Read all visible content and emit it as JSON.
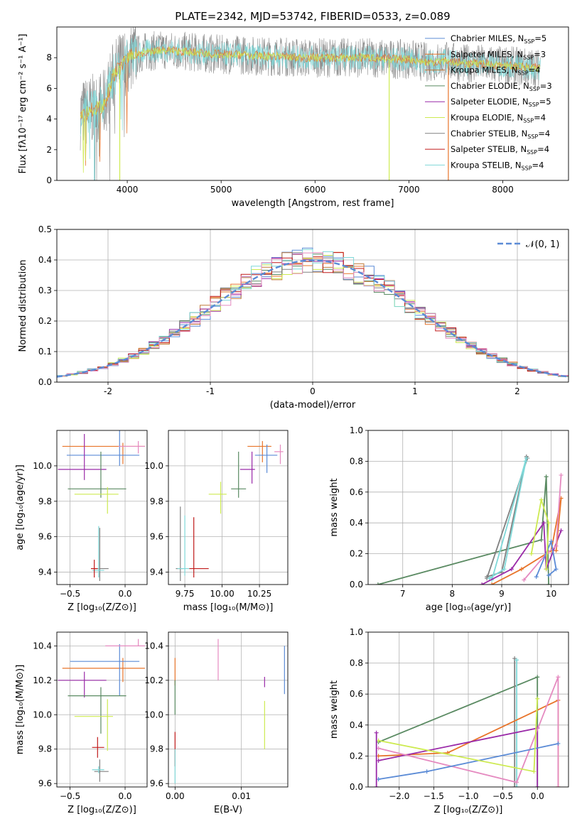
{
  "title": "PLATE=2342, MJD=53742, FIBERID=0533, z=0.089",
  "colors": {
    "chabrier_miles": "#5b8bd6",
    "salpeter_miles": "#e8742a",
    "kroupa_miles": "#c07a3a",
    "chabrier_elodie": "#5a8a62",
    "salpeter_elodie": "#9a2aa8",
    "kroupa_elodie": "#cdea50",
    "chabrier_stelib": "#808080",
    "salpeter_stelib": "#c01a1a",
    "kroupa_stelib": "#7fd8d8",
    "normal": "#5b8bd6",
    "grid": "#b0b0b0"
  },
  "chart_data": [
    {
      "id": "spectrum",
      "type": "line",
      "xlabel": "wavelength [Angstrom, rest frame]",
      "ylabel": "Flux [fλ10⁻¹⁷ erg cm⁻² s⁻¹ A⁻¹]",
      "xlim": [
        3250,
        8700
      ],
      "ylim": [
        0,
        10
      ],
      "xticks": [
        4000,
        5000,
        6000,
        7000,
        8000
      ],
      "yticks": [
        0,
        2,
        4,
        6,
        8
      ],
      "legend_position": "right",
      "legend": [
        {
          "label": "Chabrier MILES, N",
          "sub": "SSP",
          "suffix": "=5",
          "color": "chabrier_miles"
        },
        {
          "label": "Salpeter MILES, N",
          "sub": "SSP",
          "suffix": "=3",
          "color": "salpeter_miles"
        },
        {
          "label": "Kroupa MILES, N",
          "sub": "SSP",
          "suffix": "=4",
          "color": "kroupa_miles"
        },
        {
          "label": "Chabrier ELODIE, N",
          "sub": "SSP",
          "suffix": "=3",
          "color": "chabrier_elodie"
        },
        {
          "label": "Salpeter ELODIE, N",
          "sub": "SSP",
          "suffix": "=5",
          "color": "salpeter_elodie"
        },
        {
          "label": "Kroupa ELODIE, N",
          "sub": "SSP",
          "suffix": "=4",
          "color": "kroupa_elodie"
        },
        {
          "label": "Chabrier STELIB, N",
          "sub": "SSP",
          "suffix": "=4",
          "color": "chabrier_stelib"
        },
        {
          "label": "Salpeter STELIB, N",
          "sub": "SSP",
          "suffix": "=4",
          "color": "salpeter_stelib"
        },
        {
          "label": "Kroupa STELIB, N",
          "sub": "SSP",
          "suffix": "=4",
          "color": "kroupa_stelib"
        }
      ],
      "continuum": [
        [
          3500,
          4.3
        ],
        [
          3620,
          4.6
        ],
        [
          3750,
          4.9
        ],
        [
          3850,
          6.8
        ],
        [
          3950,
          7.6
        ],
        [
          4050,
          8.1
        ],
        [
          4200,
          8.4
        ],
        [
          4400,
          8.5
        ],
        [
          4600,
          8.4
        ],
        [
          4800,
          8.3
        ],
        [
          5000,
          8.2
        ],
        [
          5200,
          8.2
        ],
        [
          5400,
          8.1
        ],
        [
          5600,
          8.1
        ],
        [
          5800,
          8.0
        ],
        [
          6000,
          8.0
        ],
        [
          6200,
          8.0
        ],
        [
          6400,
          8.0
        ],
        [
          6600,
          8.0
        ],
        [
          6800,
          7.9
        ],
        [
          7000,
          7.9
        ],
        [
          7200,
          7.7
        ],
        [
          7400,
          7.8
        ],
        [
          7600,
          7.6
        ],
        [
          7800,
          7.6
        ],
        [
          8000,
          7.5
        ],
        [
          8200,
          7.4
        ],
        [
          8400,
          7.3
        ]
      ],
      "spikes": [
        {
          "x": 3920,
          "color": "kroupa_elodie"
        },
        {
          "x": 6790,
          "color": "kroupa_elodie"
        },
        {
          "x": 7420,
          "color": "salpeter_miles"
        },
        {
          "x": 3650,
          "color": "kroupa_stelib"
        }
      ]
    },
    {
      "id": "residuals",
      "type": "histogram",
      "xlabel": "(data-model)/error",
      "ylabel": "Normed distribution",
      "xlim": [
        -2.5,
        2.5
      ],
      "ylim": [
        0,
        0.5
      ],
      "xticks": [
        -2,
        -1,
        0,
        1,
        2
      ],
      "yticks": [
        0.0,
        0.1,
        0.2,
        0.3,
        0.4,
        0.5
      ],
      "grid": true,
      "legend": "𝒩(0, 1)",
      "legend_position": "top-right",
      "bin_width": 0.1,
      "series_colors": [
        "chabrier_miles",
        "salpeter_miles",
        "kroupa_miles",
        "chabrier_elodie",
        "salpeter_elodie",
        "kroupa_elodie",
        "chabrier_stelib",
        "salpeter_stelib",
        "kroupa_stelib"
      ],
      "color_extra": "#e58ac0"
    },
    {
      "id": "age_vs_Z",
      "type": "scatter",
      "xlabel": "Z [log₁₀(Z/Z⊙)]",
      "ylabel": "age  [log₁₀(age/yr)]",
      "xlim": [
        -0.62,
        0.2
      ],
      "ylim": [
        9.33,
        10.2
      ],
      "xticks": [
        -0.5,
        0.0
      ],
      "xticklabels": [
        "−0.5",
        "0.0"
      ],
      "yticks": [
        9.4,
        9.6,
        9.8,
        10.0
      ],
      "yticklabels": [
        "9.4",
        "9.6",
        "9.8",
        "10.0"
      ],
      "points": [
        {
          "x": -0.02,
          "y": 10.11,
          "xerr": [
            0.55,
            0.2
          ],
          "yerr": [
            0.1,
            0.02
          ],
          "color": "salpeter_miles"
        },
        {
          "x": -0.05,
          "y": 10.06,
          "xerr": [
            0.48,
            0.18
          ],
          "yerr": [
            0.06,
            0.14
          ],
          "color": "chabrier_miles"
        },
        {
          "x": 0.12,
          "y": 10.11,
          "xerr": [
            0.18,
            0.06
          ],
          "yerr": [
            0.04,
            0.03
          ],
          "color": "#e58ac0"
        },
        {
          "x": -0.37,
          "y": 9.98,
          "xerr": [
            0.24,
            0.2
          ],
          "yerr": [
            0.06,
            0.2
          ],
          "color": "salpeter_elodie"
        },
        {
          "x": -0.22,
          "y": 9.87,
          "xerr": [
            0.3,
            0.23
          ],
          "yerr": [
            0.05,
            0.21
          ],
          "color": "chabrier_elodie"
        },
        {
          "x": -0.16,
          "y": 9.84,
          "xerr": [
            0.3,
            0.1
          ],
          "yerr": [
            0.11,
            0.04
          ],
          "color": "kroupa_elodie"
        },
        {
          "x": -0.23,
          "y": 9.42,
          "xerr": [
            0.05,
            0.08
          ],
          "yerr": [
            0.07,
            0.23
          ],
          "color": "chabrier_stelib"
        },
        {
          "x": -0.24,
          "y": 9.41,
          "xerr": [
            0.06,
            0.05
          ],
          "yerr": [
            0.04,
            0.25
          ],
          "color": "kroupa_stelib"
        },
        {
          "x": -0.28,
          "y": 9.42,
          "xerr": [
            0.03,
            0.03
          ],
          "yerr": [
            0.05,
            0.05
          ],
          "color": "salpeter_stelib"
        }
      ]
    },
    {
      "id": "age_vs_mass",
      "type": "scatter",
      "xlabel": "mass [log₁₀(M/M⊙)]",
      "xlim": [
        9.64,
        10.44
      ],
      "ylim": [
        9.33,
        10.2
      ],
      "xticks": [
        9.75,
        10.0,
        10.25
      ],
      "xticklabels": [
        "9.75",
        "10.00",
        "10.25"
      ],
      "yticks": [
        9.4,
        9.6,
        9.8,
        10.0
      ],
      "yticklabels": [
        "9.4",
        "9.6",
        "9.8",
        "10.0"
      ],
      "points": [
        {
          "x": 10.27,
          "y": 10.11,
          "xerr": [
            0.1,
            0.06
          ],
          "yerr": [
            0.09,
            0.03
          ],
          "color": "salpeter_miles"
        },
        {
          "x": 10.3,
          "y": 10.06,
          "xerr": [
            0.08,
            0.07
          ],
          "yerr": [
            0.1,
            0.06
          ],
          "color": "chabrier_miles"
        },
        {
          "x": 10.39,
          "y": 10.08,
          "xerr": [
            0.04,
            0.02
          ],
          "yerr": [
            0.07,
            0.04
          ],
          "color": "#e58ac0"
        },
        {
          "x": 10.2,
          "y": 9.98,
          "xerr": [
            0.08,
            0.02
          ],
          "yerr": [
            0.08,
            0.1
          ],
          "color": "salpeter_elodie"
        },
        {
          "x": 10.11,
          "y": 9.87,
          "xerr": [
            0.05,
            0.05
          ],
          "yerr": [
            0.05,
            0.21
          ],
          "color": "chabrier_elodie"
        },
        {
          "x": 9.99,
          "y": 9.84,
          "xerr": [
            0.08,
            0.04
          ],
          "yerr": [
            0.11,
            0.07
          ],
          "color": "kroupa_elodie"
        },
        {
          "x": 9.72,
          "y": 9.42,
          "xerr": [
            0.03,
            0.02
          ],
          "yerr": [
            0.07,
            0.35
          ],
          "color": "chabrier_stelib"
        },
        {
          "x": 9.75,
          "y": 9.42,
          "xerr": [
            0.05,
            0.03
          ],
          "yerr": [
            0.04,
            0.3
          ],
          "color": "kroupa_stelib"
        },
        {
          "x": 9.81,
          "y": 9.42,
          "xerr": [
            0.03,
            0.1
          ],
          "yerr": [
            0.05,
            0.29
          ],
          "color": "salpeter_stelib"
        }
      ]
    },
    {
      "id": "weight_vs_age",
      "type": "line",
      "xlabel": "age  [log₁₀(age/yr)]",
      "ylabel": "mass weight",
      "xlim": [
        6.3,
        10.35
      ],
      "ylim": [
        0,
        1.0
      ],
      "xticks": [
        7,
        8,
        9,
        10
      ],
      "yticks": [
        0.0,
        0.2,
        0.4,
        0.6,
        0.8,
        1.0
      ],
      "grid": true,
      "series": [
        {
          "color": "chabrier_elodie",
          "x": [
            6.5,
            9.8,
            9.9,
            9.95
          ],
          "y": [
            0.0,
            0.29,
            0.7,
            0.0
          ]
        },
        {
          "color": "chabrier_stelib",
          "x": [
            8.7,
            9.0,
            9.5,
            9.52,
            8.7
          ],
          "y": [
            0.05,
            0.08,
            0.83,
            0.82,
            0.04
          ]
        },
        {
          "color": "kroupa_stelib",
          "x": [
            8.75,
            9.05,
            9.5,
            9.48,
            8.8
          ],
          "y": [
            0.04,
            0.1,
            0.82,
            0.8,
            0.03
          ]
        },
        {
          "color": "salpeter_elodie",
          "x": [
            8.6,
            9.2,
            9.85,
            9.9,
            10.2
          ],
          "y": [
            0.0,
            0.1,
            0.4,
            0.1,
            0.35
          ]
        },
        {
          "color": "salpeter_miles",
          "x": [
            8.8,
            9.4,
            10.0,
            10.2,
            10.1
          ],
          "y": [
            0.0,
            0.1,
            0.22,
            0.56,
            0.22
          ]
        },
        {
          "color": "#e58ac0",
          "x": [
            9.45,
            9.9,
            10.1,
            10.2
          ],
          "y": [
            0.03,
            0.2,
            0.25,
            0.71
          ]
        },
        {
          "color": "chabrier_miles",
          "x": [
            9.7,
            10.0,
            10.1,
            9.95
          ],
          "y": [
            0.05,
            0.28,
            0.1,
            0.06
          ]
        },
        {
          "color": "kroupa_elodie",
          "x": [
            9.6,
            9.8,
            9.95,
            9.9
          ],
          "y": [
            0.2,
            0.55,
            0.4,
            0.1
          ]
        }
      ]
    },
    {
      "id": "mass_vs_Z",
      "type": "scatter",
      "xlabel": "Z [log₁₀(Z/Z⊙)]",
      "ylabel": "mass [log₁₀(M/M⊙)]",
      "xlim": [
        -0.62,
        0.2
      ],
      "ylim": [
        9.58,
        10.48
      ],
      "xticks": [
        -0.5,
        0.0
      ],
      "xticklabels": [
        "−0.5",
        "0.0"
      ],
      "yticks": [
        9.6,
        9.8,
        10.0,
        10.2,
        10.4
      ],
      "yticklabels": [
        "9.6",
        "9.8",
        "10.0",
        "10.2",
        "10.4"
      ],
      "points": [
        {
          "x": -0.02,
          "y": 10.27,
          "xerr": [
            0.55,
            0.2
          ],
          "yerr": [
            0.08,
            0.06
          ],
          "color": "salpeter_miles"
        },
        {
          "x": -0.05,
          "y": 10.31,
          "xerr": [
            0.45,
            0.18
          ],
          "yerr": [
            0.2,
            0.1
          ],
          "color": "chabrier_miles"
        },
        {
          "x": 0.12,
          "y": 10.4,
          "xerr": [
            0.3,
            0.06
          ],
          "yerr": [
            0.0,
            0.04
          ],
          "color": "#e58ac0"
        },
        {
          "x": -0.37,
          "y": 10.2,
          "xerr": [
            0.24,
            0.2
          ],
          "yerr": [
            0.1,
            0.05
          ],
          "color": "salpeter_elodie"
        },
        {
          "x": -0.22,
          "y": 10.11,
          "xerr": [
            0.3,
            0.23
          ],
          "yerr": [
            0.22,
            0.05
          ],
          "color": "chabrier_elodie"
        },
        {
          "x": -0.16,
          "y": 9.99,
          "xerr": [
            0.3,
            0.05
          ],
          "yerr": [
            0.2,
            0.1
          ],
          "color": "kroupa_elodie"
        },
        {
          "x": -0.23,
          "y": 9.67,
          "xerr": [
            0.05,
            0.08
          ],
          "yerr": [
            0.06,
            0.07
          ],
          "color": "chabrier_stelib"
        },
        {
          "x": -0.24,
          "y": 9.68,
          "xerr": [
            0.06,
            0.05
          ],
          "yerr": [
            0.02,
            0.02
          ],
          "color": "kroupa_stelib"
        },
        {
          "x": -0.25,
          "y": 9.81,
          "xerr": [
            0.05,
            0.06
          ],
          "yerr": [
            0.06,
            0.06
          ],
          "color": "salpeter_stelib"
        }
      ]
    },
    {
      "id": "mass_vs_EBV",
      "type": "scatter",
      "xlabel": "E(B-V)",
      "xlim": [
        -0.001,
        0.017
      ],
      "ylim": [
        9.58,
        10.48
      ],
      "xticks": [
        0.0,
        0.01
      ],
      "xticklabels": [
        "0.00",
        "0.01"
      ],
      "yticks": [
        9.6,
        9.8,
        10.0,
        10.2,
        10.4
      ],
      "yticklabels": [
        "9.6",
        "9.8",
        "10.0",
        "10.2",
        "10.4"
      ],
      "points": [
        {
          "x": 0.0,
          "y": 10.27,
          "yerr": [
            0.1,
            0.06
          ],
          "color": "salpeter_miles"
        },
        {
          "x": 0.0,
          "y": 10.1,
          "yerr": [
            0.1,
            0.1
          ],
          "color": "chabrier_elodie"
        },
        {
          "x": 0.0,
          "y": 9.8,
          "yerr": [
            0.1,
            0.1
          ],
          "color": "salpeter_stelib"
        },
        {
          "x": 0.0,
          "y": 9.7,
          "yerr": [
            0.1,
            0.1
          ],
          "color": "kroupa_stelib"
        },
        {
          "x": 0.0065,
          "y": 10.32,
          "yerr": [
            0.12,
            0.12
          ],
          "color": "#e58ac0"
        },
        {
          "x": 0.0135,
          "y": 10.2,
          "yerr": [
            0.04,
            0.02
          ],
          "color": "salpeter_elodie"
        },
        {
          "x": 0.0135,
          "y": 9.94,
          "yerr": [
            0.14,
            0.14
          ],
          "color": "kroupa_elodie"
        },
        {
          "x": 0.0165,
          "y": 10.26,
          "yerr": [
            0.14,
            0.14
          ],
          "color": "chabrier_miles"
        }
      ]
    },
    {
      "id": "weight_vs_Z",
      "type": "line",
      "xlabel": "Z [log₁₀(Z/Z⊙)]",
      "ylabel": "mass weight",
      "xlim": [
        -2.45,
        0.45
      ],
      "ylim": [
        0,
        1.0
      ],
      "xticks": [
        -2.0,
        -1.5,
        -1.0,
        -0.5,
        0.0
      ],
      "xticklabels": [
        "−2.0",
        "−1.5",
        "−1.0",
        "−0.5",
        "0.0"
      ],
      "yticks": [
        0.0,
        0.2,
        0.4,
        0.6,
        0.8,
        1.0
      ],
      "grid": true,
      "series": [
        {
          "color": "chabrier_elodie",
          "x": [
            -2.3,
            0.0,
            0.0
          ],
          "y": [
            0.29,
            0.71,
            0.0
          ]
        },
        {
          "color": "chabrier_stelib",
          "x": [
            -0.33,
            -0.33
          ],
          "y": [
            0.0,
            0.83
          ]
        },
        {
          "color": "kroupa_stelib",
          "x": [
            -0.3,
            -0.3
          ],
          "y": [
            0.0,
            0.82
          ]
        },
        {
          "color": "salpeter_miles",
          "x": [
            -2.3,
            -1.3,
            0.3,
            0.3
          ],
          "y": [
            0.2,
            0.22,
            0.56,
            0.0
          ]
        },
        {
          "color": "salpeter_elodie",
          "x": [
            -2.3,
            0.0,
            0.0
          ],
          "y": [
            0.17,
            0.38,
            0.0
          ]
        },
        {
          "color": "#e58ac0",
          "x": [
            -2.3,
            -0.3,
            0.3,
            0.3
          ],
          "y": [
            0.25,
            0.03,
            0.71,
            0.0
          ]
        },
        {
          "color": "chabrier_miles",
          "x": [
            -2.3,
            -1.6,
            0.3
          ],
          "y": [
            0.05,
            0.1,
            0.28
          ]
        },
        {
          "color": "kroupa_elodie",
          "x": [
            -2.3,
            -0.05,
            0.0
          ],
          "y": [
            0.3,
            0.1,
            0.57
          ]
        },
        {
          "color": "salpeter_elodie",
          "x": [
            -2.33,
            -2.33
          ],
          "y": [
            0.0,
            0.35
          ]
        }
      ]
    }
  ]
}
